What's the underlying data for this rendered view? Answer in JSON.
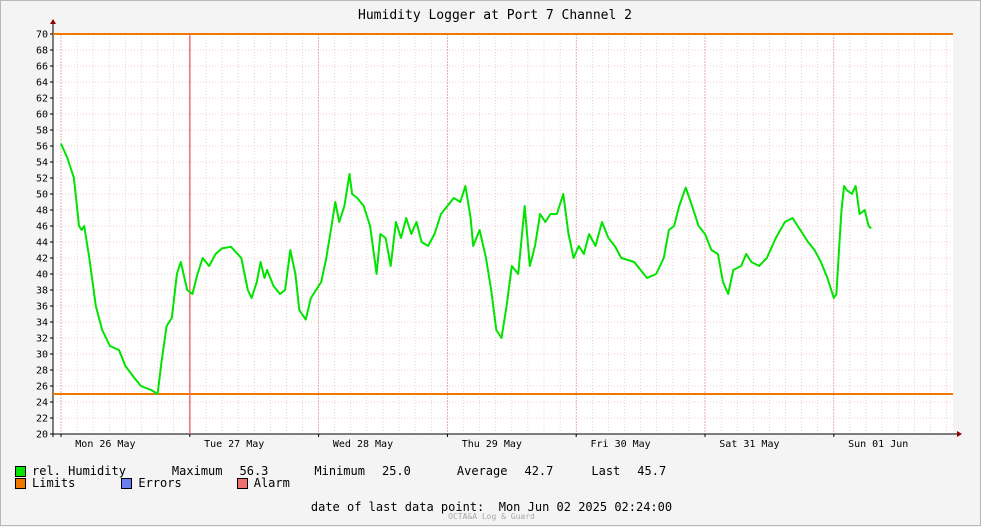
{
  "chart_data": {
    "type": "line",
    "title": "Humidity Logger at Port 7 Channel 2",
    "ylim": [
      20,
      70
    ],
    "y_ticks": [
      "20",
      "22",
      "24",
      "26",
      "28",
      "30",
      "32",
      "34",
      "36",
      "38",
      "40",
      "42",
      "44",
      "46",
      "48",
      "50",
      "52",
      "54",
      "56",
      "58",
      "60",
      "62",
      "64",
      "66",
      "68",
      "70"
    ],
    "x_ticks": [
      "Mon 26 May",
      "Tue 27 May",
      "Wed 28 May",
      "Thu 29 May",
      "Fri 30 May",
      "Sat 31 May",
      "Sun 01 Jun"
    ],
    "grid": true,
    "limits": {
      "upper": 70,
      "lower": 25,
      "color": "#f07800"
    },
    "alarm_marker": {
      "x_day": 1.0
    },
    "series": [
      {
        "name": "rel. Humidity",
        "color": "#00e400",
        "points": [
          [
            0.0,
            56.3
          ],
          [
            0.05,
            54.5
          ],
          [
            0.1,
            52.0
          ],
          [
            0.12,
            49.0
          ],
          [
            0.14,
            46.0
          ],
          [
            0.16,
            45.5
          ],
          [
            0.18,
            46.0
          ],
          [
            0.22,
            42.0
          ],
          [
            0.27,
            36.0
          ],
          [
            0.32,
            33.0
          ],
          [
            0.38,
            31.0
          ],
          [
            0.45,
            30.5
          ],
          [
            0.5,
            28.5
          ],
          [
            0.57,
            27.0
          ],
          [
            0.62,
            26.0
          ],
          [
            0.7,
            25.5
          ],
          [
            0.75,
            25.0
          ],
          [
            0.78,
            29.0
          ],
          [
            0.82,
            33.5
          ],
          [
            0.86,
            34.5
          ],
          [
            0.9,
            40.0
          ],
          [
            0.93,
            41.5
          ],
          [
            0.98,
            38.0
          ],
          [
            1.02,
            37.5
          ],
          [
            1.06,
            40.0
          ],
          [
            1.1,
            42.0
          ],
          [
            1.15,
            41.0
          ],
          [
            1.2,
            42.5
          ],
          [
            1.25,
            43.2
          ],
          [
            1.32,
            43.4
          ],
          [
            1.4,
            42.0
          ],
          [
            1.45,
            38.0
          ],
          [
            1.48,
            37.0
          ],
          [
            1.52,
            39.0
          ],
          [
            1.55,
            41.5
          ],
          [
            1.58,
            39.5
          ],
          [
            1.6,
            40.5
          ],
          [
            1.65,
            38.5
          ],
          [
            1.7,
            37.5
          ],
          [
            1.74,
            38.0
          ],
          [
            1.78,
            43.0
          ],
          [
            1.82,
            40.0
          ],
          [
            1.85,
            35.5
          ],
          [
            1.9,
            34.3
          ],
          [
            1.94,
            37.0
          ],
          [
            1.98,
            38.0
          ],
          [
            2.02,
            39.0
          ],
          [
            2.06,
            42.0
          ],
          [
            2.1,
            46.0
          ],
          [
            2.13,
            49.0
          ],
          [
            2.16,
            46.5
          ],
          [
            2.2,
            48.5
          ],
          [
            2.24,
            52.5
          ],
          [
            2.26,
            50.0
          ],
          [
            2.3,
            49.5
          ],
          [
            2.35,
            48.5
          ],
          [
            2.4,
            46.0
          ],
          [
            2.45,
            40.0
          ],
          [
            2.48,
            45.0
          ],
          [
            2.52,
            44.5
          ],
          [
            2.56,
            41.0
          ],
          [
            2.6,
            46.5
          ],
          [
            2.64,
            44.5
          ],
          [
            2.68,
            47.0
          ],
          [
            2.72,
            45.0
          ],
          [
            2.76,
            46.5
          ],
          [
            2.8,
            44.0
          ],
          [
            2.85,
            43.5
          ],
          [
            2.9,
            45.0
          ],
          [
            2.95,
            47.5
          ],
          [
            3.0,
            48.5
          ],
          [
            3.05,
            49.5
          ],
          [
            3.1,
            49.0
          ],
          [
            3.14,
            51.0
          ],
          [
            3.18,
            47.0
          ],
          [
            3.2,
            43.5
          ],
          [
            3.25,
            45.5
          ],
          [
            3.3,
            42.0
          ],
          [
            3.34,
            38.0
          ],
          [
            3.38,
            33.0
          ],
          [
            3.42,
            32.0
          ],
          [
            3.46,
            36.0
          ],
          [
            3.5,
            41.0
          ],
          [
            3.55,
            40.0
          ],
          [
            3.6,
            48.5
          ],
          [
            3.64,
            41.0
          ],
          [
            3.68,
            43.5
          ],
          [
            3.72,
            47.5
          ],
          [
            3.76,
            46.5
          ],
          [
            3.8,
            47.5
          ],
          [
            3.85,
            47.5
          ],
          [
            3.9,
            50.0
          ],
          [
            3.94,
            45.0
          ],
          [
            3.98,
            42.0
          ],
          [
            4.02,
            43.5
          ],
          [
            4.06,
            42.5
          ],
          [
            4.1,
            45.0
          ],
          [
            4.15,
            43.5
          ],
          [
            4.2,
            46.5
          ],
          [
            4.25,
            44.5
          ],
          [
            4.3,
            43.5
          ],
          [
            4.35,
            42.0
          ],
          [
            4.45,
            41.5
          ],
          [
            4.55,
            39.5
          ],
          [
            4.62,
            40.0
          ],
          [
            4.68,
            42.0
          ],
          [
            4.72,
            45.5
          ],
          [
            4.76,
            46.0
          ],
          [
            4.8,
            48.5
          ],
          [
            4.85,
            50.8
          ],
          [
            4.9,
            48.5
          ],
          [
            4.95,
            46.0
          ],
          [
            5.0,
            45.0
          ],
          [
            5.05,
            43.0
          ],
          [
            5.1,
            42.5
          ],
          [
            5.14,
            39.0
          ],
          [
            5.18,
            37.5
          ],
          [
            5.22,
            40.5
          ],
          [
            5.28,
            41.0
          ],
          [
            5.32,
            42.5
          ],
          [
            5.36,
            41.5
          ],
          [
            5.42,
            41.0
          ],
          [
            5.48,
            42.0
          ],
          [
            5.55,
            44.5
          ],
          [
            5.62,
            46.5
          ],
          [
            5.68,
            47.0
          ],
          [
            5.72,
            46.0
          ],
          [
            5.76,
            45.0
          ],
          [
            5.8,
            44.0
          ],
          [
            5.85,
            43.0
          ],
          [
            5.9,
            41.5
          ],
          [
            5.95,
            39.5
          ],
          [
            6.0,
            37.0
          ],
          [
            6.02,
            37.5
          ],
          [
            6.04,
            43.0
          ],
          [
            6.06,
            48.0
          ],
          [
            6.08,
            51.0
          ],
          [
            6.1,
            50.5
          ],
          [
            6.14,
            50.0
          ],
          [
            6.17,
            51.0
          ],
          [
            6.2,
            47.5
          ],
          [
            6.24,
            48.0
          ],
          [
            6.27,
            46.0
          ],
          [
            6.29,
            45.7
          ]
        ]
      },
      {
        "name": "Limits",
        "color": "#f07800"
      },
      {
        "name": "Errors",
        "color": "#6a7ef0"
      },
      {
        "name": "Alarm",
        "color": "#f07070"
      }
    ]
  },
  "stats": {
    "maximum_label": "Maximum",
    "maximum_value": "56.3",
    "minimum_label": "Minimum",
    "minimum_value": "25.0",
    "average_label": "Average",
    "average_value": "42.7",
    "last_label": "Last",
    "last_value": "45.7"
  },
  "footer": {
    "last_point_label": "date of last data point:",
    "last_point_value": "Mon Jun 02 2025 02:24:00",
    "watermark": "OCTA&A Log & Guard"
  }
}
